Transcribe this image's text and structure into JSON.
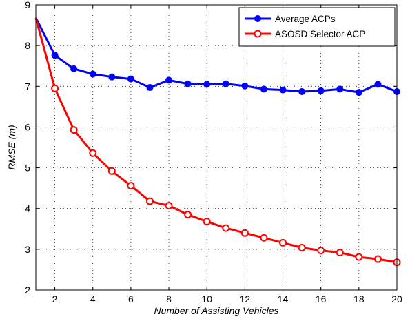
{
  "chart_data": {
    "type": "line",
    "xlabel": "Number of Assisting Vehicles",
    "ylabel": "RMSE (m)",
    "xlim": [
      1,
      20
    ],
    "ylim": [
      2,
      9
    ],
    "xticks": [
      2,
      4,
      6,
      8,
      10,
      12,
      14,
      16,
      18,
      20
    ],
    "yticks": [
      2,
      3,
      4,
      5,
      6,
      7,
      8,
      9
    ],
    "grid": true,
    "legend_position": "top-right",
    "x": [
      1,
      2,
      3,
      4,
      5,
      6,
      7,
      8,
      9,
      10,
      11,
      12,
      13,
      14,
      15,
      16,
      17,
      18,
      19,
      20
    ],
    "series": [
      {
        "name": "Average ACPs",
        "color": "#0000ff",
        "marker": "filled-circle",
        "values": [
          8.68,
          7.76,
          7.43,
          7.3,
          7.23,
          7.18,
          6.97,
          7.15,
          7.06,
          7.05,
          7.06,
          7.01,
          6.93,
          6.91,
          6.87,
          6.89,
          6.93,
          6.85,
          7.05,
          6.87
        ]
      },
      {
        "name": "ASOSD Selector ACP",
        "color": "#ff0000",
        "marker": "open-circle",
        "values": [
          8.68,
          6.95,
          5.93,
          5.36,
          4.92,
          4.56,
          4.18,
          4.07,
          3.85,
          3.68,
          3.52,
          3.4,
          3.28,
          3.16,
          3.04,
          2.97,
          2.92,
          2.81,
          2.76,
          2.68
        ]
      }
    ]
  }
}
